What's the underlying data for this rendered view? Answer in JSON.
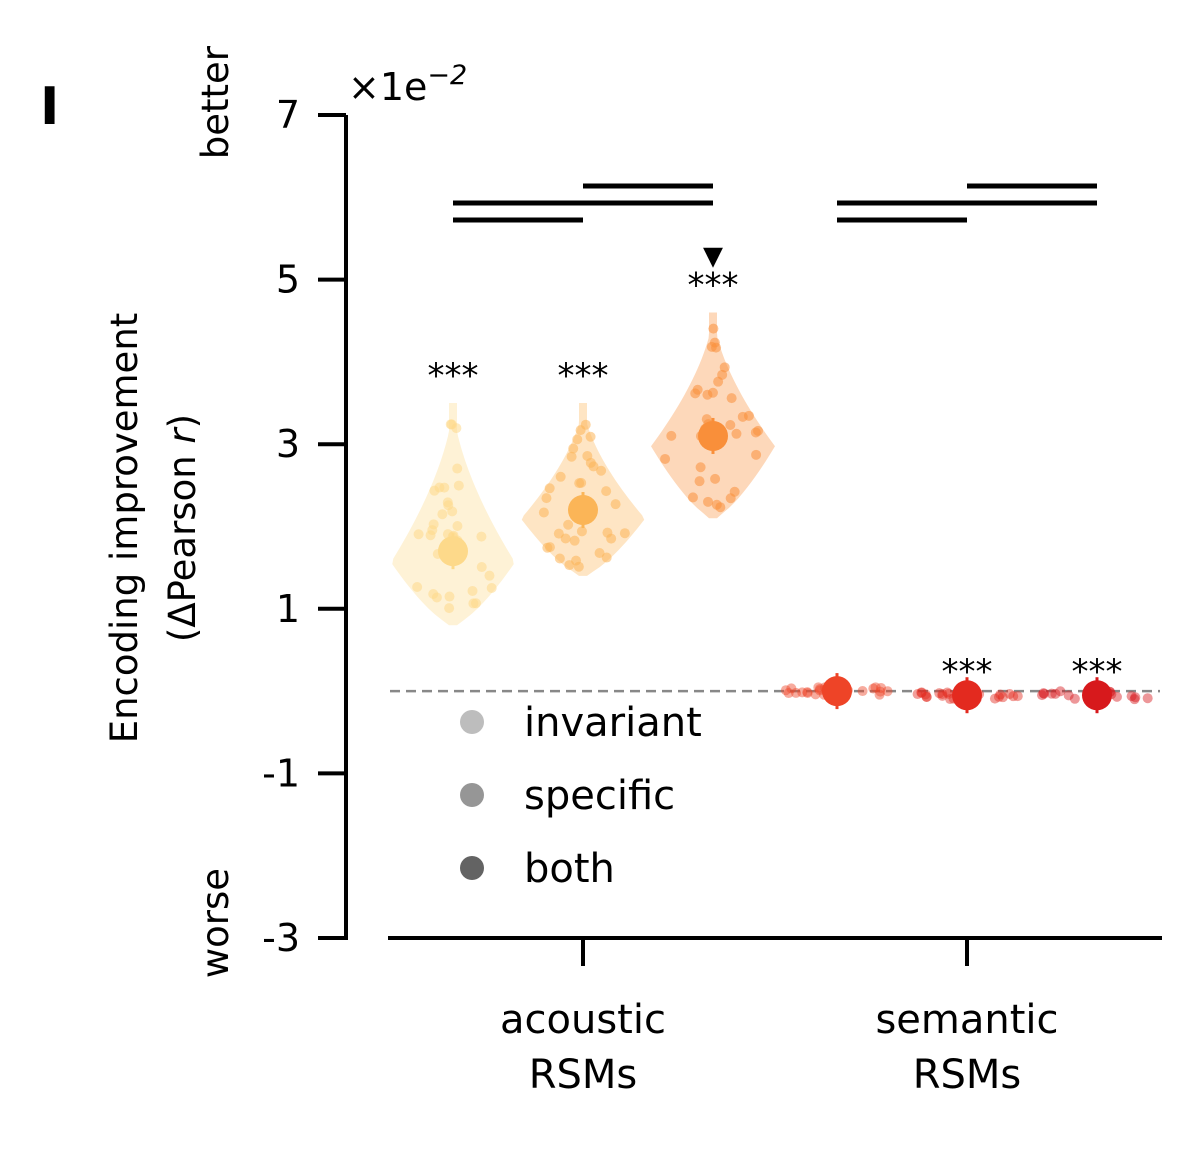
{
  "panel_label": "I",
  "chart_data": {
    "type": "violin",
    "y_multiplier_label": "×1e",
    "y_multiplier_exponent": "−2",
    "ylabel_line1": "Encoding improvement",
    "ylabel_line2_prefix": "(ΔPearson ",
    "ylabel_line2_italic": "r",
    "ylabel_line2_suffix": ")",
    "better_label": "better",
    "worse_label": "worse",
    "ylim": [
      -3,
      7
    ],
    "yticks": [
      {
        "value": 7,
        "label": "7"
      },
      {
        "value": 5,
        "label": "5"
      },
      {
        "value": 3,
        "label": "3"
      },
      {
        "value": 1,
        "label": "1"
      },
      {
        "value": -1,
        "label": "-1"
      },
      {
        "value": -3,
        "label": "-3"
      }
    ],
    "reference_line": 0,
    "categories": [
      {
        "line1": "acoustic",
        "line2": "RSMs"
      },
      {
        "line1": "semantic",
        "line2": "RSMs"
      }
    ],
    "groups": [
      {
        "category": 0,
        "type": "invariant",
        "mean": 1.7,
        "min": 0.8,
        "max": 3.5,
        "stars": "***",
        "color": "#fdd98a"
      },
      {
        "category": 0,
        "type": "specific",
        "mean": 2.2,
        "min": 1.4,
        "max": 3.5,
        "stars": "***",
        "color": "#fbb557"
      },
      {
        "category": 0,
        "type": "both",
        "mean": 3.1,
        "min": 2.1,
        "max": 4.6,
        "stars": "***",
        "color": "#f98f3a",
        "marker": "▼"
      },
      {
        "category": 1,
        "type": "invariant",
        "mean": 0.0,
        "min": -0.05,
        "max": 0.05,
        "stars": "",
        "color": "#ee4427"
      },
      {
        "category": 1,
        "type": "specific",
        "mean": -0.05,
        "min": -0.1,
        "max": 0.05,
        "stars": "***",
        "color": "#e32a1f"
      },
      {
        "category": 1,
        "type": "both",
        "mean": -0.05,
        "min": -0.1,
        "max": 0.05,
        "stars": "***",
        "color": "#d7191c"
      }
    ],
    "comparison_bars": [
      {
        "category": 0,
        "from": "invariant",
        "to": "specific",
        "level": 1
      },
      {
        "category": 0,
        "from": "invariant",
        "to": "both",
        "level": 2
      },
      {
        "category": 0,
        "from": "specific",
        "to": "both",
        "level": 3
      },
      {
        "category": 1,
        "from": "invariant",
        "to": "specific",
        "level": 1
      },
      {
        "category": 1,
        "from": "invariant",
        "to": "both",
        "level": 2
      },
      {
        "category": 1,
        "from": "specific",
        "to": "both",
        "level": 3
      }
    ],
    "legend": [
      {
        "label": "invariant",
        "color": "#bdbdbd"
      },
      {
        "label": "specific",
        "color": "#969696"
      },
      {
        "label": "both",
        "color": "#636363"
      }
    ]
  }
}
